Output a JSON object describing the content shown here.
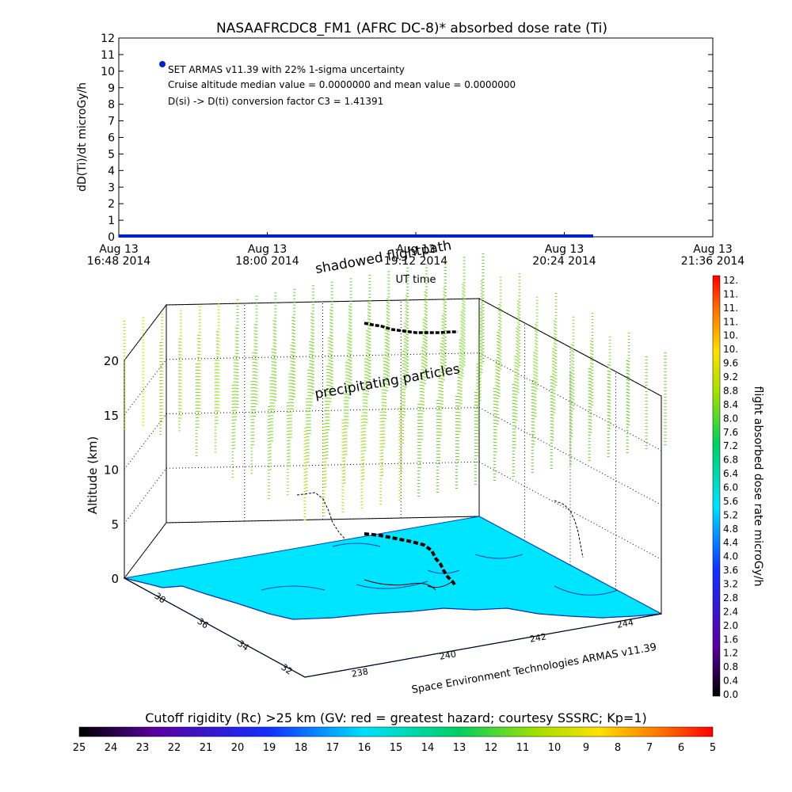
{
  "chart_data": [
    {
      "type": "line",
      "title": "NASAAFRCDC8_FM1 (AFRC DC-8)* absorbed dose rate (Ti)",
      "ylabel": "dD(Ti)/dt microGy/h",
      "xlabel": "UT time",
      "ylim": [
        0,
        12
      ],
      "yticks": [
        "0",
        "1",
        "2",
        "3",
        "4",
        "5",
        "6",
        "7",
        "8",
        "9",
        "10",
        "11",
        "12"
      ],
      "xticks": [
        {
          "date": "Aug 13",
          "time": "16:48 2014"
        },
        {
          "date": "Aug 13",
          "time": "18:00 2014"
        },
        {
          "date": "Aug 13",
          "time": "19:12 2014"
        },
        {
          "date": "Aug 13",
          "time": "20:24 2014"
        },
        {
          "date": "Aug 13",
          "time": "21:36 2014"
        }
      ],
      "xlim_minutes_of_day": [
        1008,
        1296
      ],
      "series": [
        {
          "color": "#0022cc",
          "x_range_minutes_of_day": [
            1008,
            1238
          ],
          "y": 0.0
        }
      ],
      "legend": {
        "marker_color": "#0022cc",
        "lines": [
          "SET ARMAS v11.39 with 22% 1-sigma uncertainty",
          "Cruise altitude median value = 0.0000000 and mean value = 0.0000000",
          "D(si) -> D(ti) conversion factor C3 = 1.41391"
        ]
      }
    },
    {
      "type": "surface3d",
      "zlabel": "Altitude (km)",
      "zticks": [
        "0",
        "5",
        "10",
        "15",
        "20"
      ],
      "lat_ticks": [
        "32",
        "34",
        "36",
        "38"
      ],
      "lon_ticks": [
        "238",
        "240",
        "242",
        "244"
      ],
      "annotations": {
        "shadowed": "shadowed flightpath",
        "precip": "precipitating particles",
        "credit": "Space Environment Technologies ARMAS v11.39"
      },
      "surface_color": "#00e5ff",
      "precip_color": "#7cd820"
    }
  ],
  "colorbar_right": {
    "label": "flight absorbed dose rate microGy/h",
    "ticks": [
      "0.0",
      "0.4",
      "0.8",
      "1.2",
      "1.6",
      "2.0",
      "2.4",
      "2.8",
      "3.2",
      "3.6",
      "4.0",
      "4.4",
      "4.8",
      "5.2",
      "5.6",
      "6.0",
      "6.4",
      "6.8",
      "7.2",
      "7.6",
      "8.0",
      "8.4",
      "8.8",
      "9.2",
      "9.6",
      "10.",
      "10.",
      "11.",
      "11.",
      "11.",
      "12."
    ]
  },
  "colorbar_bottom": {
    "label": "Cutoff rigidity (Rc) >25 km (GV: red = greatest hazard; courtesy SSSRC; Kp=1)",
    "ticks": [
      "25",
      "24",
      "23",
      "22",
      "21",
      "20",
      "19",
      "18",
      "17",
      "16",
      "15",
      "14",
      "13",
      "12",
      "11",
      "10",
      "9",
      "8",
      "7",
      "6",
      "5"
    ]
  }
}
